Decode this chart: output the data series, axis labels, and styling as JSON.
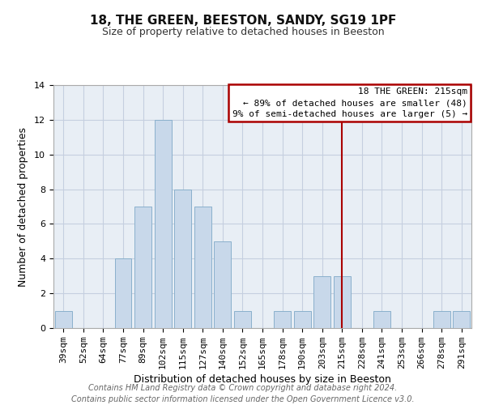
{
  "title": "18, THE GREEN, BEESTON, SANDY, SG19 1PF",
  "subtitle": "Size of property relative to detached houses in Beeston",
  "xlabel": "Distribution of detached houses by size in Beeston",
  "ylabel": "Number of detached properties",
  "bar_color": "#c8d8ea",
  "bar_edge_color": "#8ab0cc",
  "background_color": "#ffffff",
  "plot_bg_color": "#e8eef5",
  "grid_color": "#c5cfe0",
  "categories": [
    "39sqm",
    "52sqm",
    "64sqm",
    "77sqm",
    "89sqm",
    "102sqm",
    "115sqm",
    "127sqm",
    "140sqm",
    "152sqm",
    "165sqm",
    "178sqm",
    "190sqm",
    "203sqm",
    "215sqm",
    "228sqm",
    "241sqm",
    "253sqm",
    "266sqm",
    "278sqm",
    "291sqm"
  ],
  "values": [
    1,
    0,
    0,
    4,
    7,
    12,
    8,
    7,
    5,
    1,
    0,
    1,
    1,
    3,
    3,
    0,
    1,
    0,
    0,
    1,
    1
  ],
  "ylim": [
    0,
    14
  ],
  "yticks": [
    0,
    2,
    4,
    6,
    8,
    10,
    12,
    14
  ],
  "property_label": "18 THE GREEN: 215sqm",
  "legend_line1": "← 89% of detached houses are smaller (48)",
  "legend_line2": "9% of semi-detached houses are larger (5) →",
  "legend_box_color": "#aa0000",
  "vline_color": "#aa0000",
  "vline_x_index": 14,
  "footer_line1": "Contains HM Land Registry data © Crown copyright and database right 2024.",
  "footer_line2": "Contains public sector information licensed under the Open Government Licence v3.0.",
  "title_fontsize": 11,
  "subtitle_fontsize": 9,
  "axis_label_fontsize": 9,
  "tick_fontsize": 8,
  "legend_fontsize": 8,
  "footer_fontsize": 7
}
